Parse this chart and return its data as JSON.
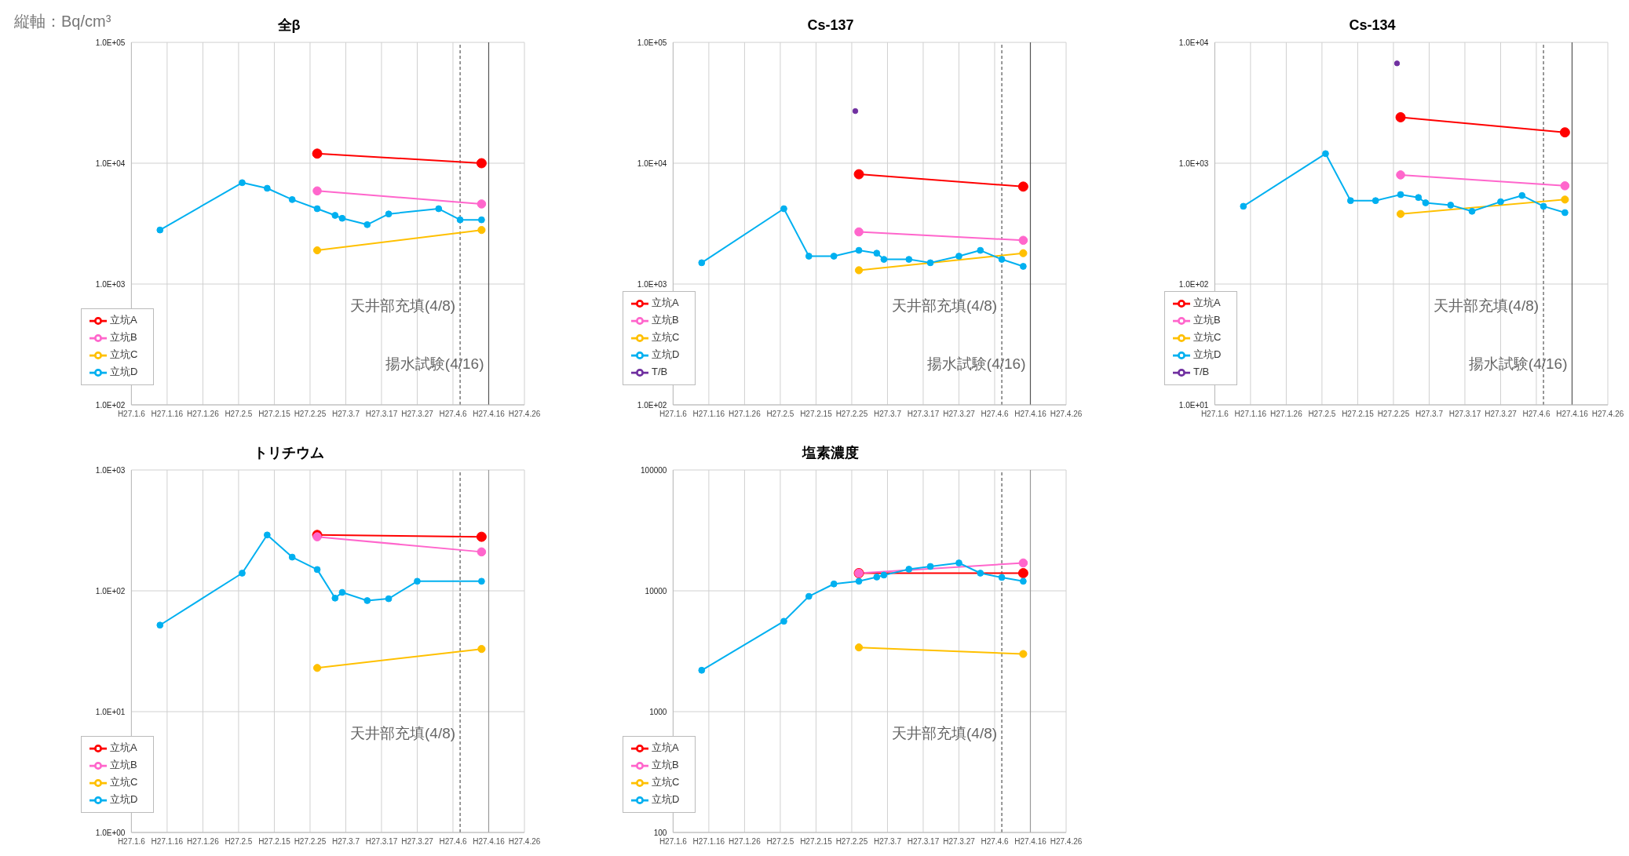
{
  "chart_data": [
    {
      "type": "line",
      "title": "全β",
      "annotations": [
        "縦軸：Bq/cm³"
      ],
      "log": "y",
      "grid": true,
      "legend": "bottom left",
      "marker": "circle",
      "xlim": [
        "--01-06",
        "--04-26"
      ],
      "xticks": [
        {
          "value": "--01-06",
          "label": "H27.1.6"
        },
        {
          "value": "--01-16",
          "label": "H27.1.16"
        },
        {
          "value": "--01-26",
          "label": "H27.1.26"
        },
        {
          "value": "--02-05",
          "label": "H27.2.5"
        },
        {
          "value": "--02-15",
          "label": "H27.2.15"
        },
        {
          "value": "--02-25",
          "label": "H27.2.25"
        },
        {
          "value": "--03-07",
          "label": "H27.3.7"
        },
        {
          "value": "--03-17",
          "label": "H27.3.17"
        },
        {
          "value": "--03-27",
          "label": "H27.3.27"
        },
        {
          "value": "--04-06",
          "label": "H27.4.6"
        },
        {
          "value": "--04-16",
          "label": "H27.4.16"
        },
        {
          "value": "--04-26",
          "label": "H27.4.26"
        }
      ],
      "ylim": [
        100,
        100000
      ],
      "yticks": [
        {
          "value": 100,
          "label": "1.0E+02"
        },
        {
          "value": 1000,
          "label": "1.0E+03"
        },
        {
          "value": 10000,
          "label": "1.0E+04"
        },
        {
          "value": 100000,
          "label": "1.0E+05"
        }
      ],
      "ref_lines": [
        {
          "axis": "x",
          "value": "--04-08",
          "label": "天井部充填(4/8)",
          "line_style": "dashed",
          "color": "#555555"
        },
        {
          "axis": "x",
          "value": "--04-16",
          "label": "揚水試験(4/16)",
          "line_style": "solid",
          "color": "#555555"
        }
      ],
      "series": [
        {
          "name": "立坑A",
          "color": "#ff0000",
          "x": [
            "--02-27",
            "--04-14"
          ],
          "values": [
            12000,
            10000
          ]
        },
        {
          "name": "立坑B",
          "color": "#ff66cc",
          "x": [
            "--02-27",
            "--04-14"
          ],
          "values": [
            5900,
            4600
          ]
        },
        {
          "name": "立坑C",
          "color": "#ffc000",
          "x": [
            "--02-27",
            "--04-14"
          ],
          "values": [
            1900,
            2800
          ]
        },
        {
          "name": "立坑D",
          "color": "#00b0f0",
          "x": [
            "--01-14",
            "--02-06",
            "--02-13",
            "--02-20",
            "--02-27",
            "--03-04",
            "--03-06",
            "--03-13",
            "--03-19",
            "--04-02",
            "--04-08",
            "--04-14"
          ],
          "values": [
            2800,
            6900,
            6200,
            5000,
            4200,
            3700,
            3500,
            3100,
            3800,
            4200,
            3400,
            3400
          ]
        }
      ]
    },
    {
      "type": "line",
      "title": "Cs-137",
      "log": "y",
      "grid": true,
      "legend": "bottom left",
      "marker": "circle",
      "xlim": [
        "--01-06",
        "--04-26"
      ],
      "xticks": [
        {
          "value": "--01-06",
          "label": "H27.1.6"
        },
        {
          "value": "--01-16",
          "label": "H27.1.16"
        },
        {
          "value": "--01-26",
          "label": "H27.1.26"
        },
        {
          "value": "--02-05",
          "label": "H27.2.5"
        },
        {
          "value": "--02-15",
          "label": "H27.2.15"
        },
        {
          "value": "--02-25",
          "label": "H27.2.25"
        },
        {
          "value": "--03-07",
          "label": "H27.3.7"
        },
        {
          "value": "--03-17",
          "label": "H27.3.17"
        },
        {
          "value": "--03-27",
          "label": "H27.3.27"
        },
        {
          "value": "--04-06",
          "label": "H27.4.6"
        },
        {
          "value": "--04-16",
          "label": "H27.4.16"
        },
        {
          "value": "--04-26",
          "label": "H27.4.26"
        }
      ],
      "ylim": [
        100,
        100000
      ],
      "yticks": [
        {
          "value": 100,
          "label": "1.0E+02"
        },
        {
          "value": 1000,
          "label": "1.0E+03"
        },
        {
          "value": 10000,
          "label": "1.0E+04"
        },
        {
          "value": 100000,
          "label": "1.0E+05"
        }
      ],
      "ref_lines": [
        {
          "axis": "x",
          "value": "--04-08",
          "label": "天井部充填(4/8)",
          "line_style": "dashed",
          "color": "#555555"
        },
        {
          "axis": "x",
          "value": "--04-16",
          "label": "揚水試験(4/16)",
          "line_style": "solid",
          "color": "#555555"
        }
      ],
      "series": [
        {
          "name": "立坑A",
          "color": "#ff0000",
          "x": [
            "--02-27",
            "--04-14"
          ],
          "values": [
            8100,
            6400
          ]
        },
        {
          "name": "立坑B",
          "color": "#ff66cc",
          "x": [
            "--02-27",
            "--04-14"
          ],
          "values": [
            2700,
            2300
          ]
        },
        {
          "name": "立坑C",
          "color": "#ffc000",
          "x": [
            "--02-27",
            "--04-14"
          ],
          "values": [
            1300,
            1800
          ]
        },
        {
          "name": "立坑D",
          "color": "#00b0f0",
          "x": [
            "--01-14",
            "--02-06",
            "--02-13",
            "--02-20",
            "--02-27",
            "--03-04",
            "--03-06",
            "--03-13",
            "--03-19",
            "--03-27",
            "--04-02",
            "--04-08",
            "--04-14"
          ],
          "values": [
            1500,
            4200,
            1700,
            1700,
            1900,
            1800,
            1600,
            1600,
            1500,
            1700,
            1900,
            1600,
            1400
          ]
        },
        {
          "name": "T/B",
          "color": "#7030a0",
          "x": [
            "--02-26"
          ],
          "values": [
            27000
          ]
        }
      ]
    },
    {
      "type": "line",
      "title": "Cs-134",
      "log": "y",
      "grid": true,
      "legend": "bottom left",
      "marker": "circle",
      "xlim": [
        "--01-06",
        "--04-26"
      ],
      "xticks": [
        {
          "value": "--01-06",
          "label": "H27.1.6"
        },
        {
          "value": "--01-16",
          "label": "H27.1.16"
        },
        {
          "value": "--01-26",
          "label": "H27.1.26"
        },
        {
          "value": "--02-05",
          "label": "H27.2.5"
        },
        {
          "value": "--02-15",
          "label": "H27.2.15"
        },
        {
          "value": "--02-25",
          "label": "H27.2.25"
        },
        {
          "value": "--03-07",
          "label": "H27.3.7"
        },
        {
          "value": "--03-17",
          "label": "H27.3.17"
        },
        {
          "value": "--03-27",
          "label": "H27.3.27"
        },
        {
          "value": "--04-06",
          "label": "H27.4.6"
        },
        {
          "value": "--04-16",
          "label": "H27.4.16"
        },
        {
          "value": "--04-26",
          "label": "H27.4.26"
        }
      ],
      "ylim": [
        10,
        10000
      ],
      "yticks": [
        {
          "value": 10,
          "label": "1.0E+01"
        },
        {
          "value": 100,
          "label": "1.0E+02"
        },
        {
          "value": 1000,
          "label": "1.0E+03"
        },
        {
          "value": 10000,
          "label": "1.0E+04"
        }
      ],
      "ref_lines": [
        {
          "axis": "x",
          "value": "--04-08",
          "label": "天井部充填(4/8)",
          "line_style": "dashed",
          "color": "#555555"
        },
        {
          "axis": "x",
          "value": "--04-16",
          "label": "揚水試験(4/16)",
          "line_style": "solid",
          "color": "#555555"
        }
      ],
      "series": [
        {
          "name": "立坑A",
          "color": "#ff0000",
          "x": [
            "--02-27",
            "--04-14"
          ],
          "values": [
            2400,
            1800
          ]
        },
        {
          "name": "立坑B",
          "color": "#ff66cc",
          "x": [
            "--02-27",
            "--04-14"
          ],
          "values": [
            800,
            650
          ]
        },
        {
          "name": "立坑C",
          "color": "#ffc000",
          "x": [
            "--02-27",
            "--04-14"
          ],
          "values": [
            380,
            500
          ]
        },
        {
          "name": "立坑D",
          "color": "#00b0f0",
          "x": [
            "--01-14",
            "--02-06",
            "--02-13",
            "--02-20",
            "--02-27",
            "--03-04",
            "--03-06",
            "--03-13",
            "--03-19",
            "--03-27",
            "--04-02",
            "--04-08",
            "--04-14"
          ],
          "values": [
            440,
            1200,
            490,
            490,
            550,
            520,
            470,
            450,
            400,
            480,
            540,
            440,
            390
          ]
        },
        {
          "name": "T/B",
          "color": "#7030a0",
          "x": [
            "--02-26"
          ],
          "values": [
            6700
          ]
        }
      ]
    },
    {
      "type": "line",
      "title": "トリチウム",
      "log": "y",
      "grid": true,
      "legend": "bottom left",
      "marker": "circle",
      "xlim": [
        "--01-06",
        "--04-26"
      ],
      "xticks": [
        {
          "value": "--01-06",
          "label": "H27.1.6"
        },
        {
          "value": "--01-16",
          "label": "H27.1.16"
        },
        {
          "value": "--01-26",
          "label": "H27.1.26"
        },
        {
          "value": "--02-05",
          "label": "H27.2.5"
        },
        {
          "value": "--02-15",
          "label": "H27.2.15"
        },
        {
          "value": "--02-25",
          "label": "H27.2.25"
        },
        {
          "value": "--03-07",
          "label": "H27.3.7"
        },
        {
          "value": "--03-17",
          "label": "H27.3.17"
        },
        {
          "value": "--03-27",
          "label": "H27.3.27"
        },
        {
          "value": "--04-06",
          "label": "H27.4.6"
        },
        {
          "value": "--04-16",
          "label": "H27.4.16"
        },
        {
          "value": "--04-26",
          "label": "H27.4.26"
        }
      ],
      "ylim": [
        1,
        1000
      ],
      "yticks": [
        {
          "value": 1,
          "label": "1.0E+00"
        },
        {
          "value": 10,
          "label": "1.0E+01"
        },
        {
          "value": 100,
          "label": "1.0E+02"
        },
        {
          "value": 1000,
          "label": "1.0E+03"
        }
      ],
      "ref_lines": [
        {
          "axis": "x",
          "value": "--04-08",
          "label": "天井部充填(4/8)",
          "line_style": "dashed",
          "color": "#555555"
        },
        {
          "axis": "x",
          "value": "--04-16",
          "line_style": "solid",
          "color": "#999999"
        }
      ],
      "series": [
        {
          "name": "立坑A",
          "color": "#ff0000",
          "x": [
            "--02-27",
            "--04-14"
          ],
          "values": [
            290,
            280
          ]
        },
        {
          "name": "立坑B",
          "color": "#ff66cc",
          "x": [
            "--02-27",
            "--04-14"
          ],
          "values": [
            280,
            210
          ]
        },
        {
          "name": "立坑C",
          "color": "#ffc000",
          "x": [
            "--02-27",
            "--04-14"
          ],
          "values": [
            23,
            33
          ]
        },
        {
          "name": "立坑D",
          "color": "#00b0f0",
          "x": [
            "--01-14",
            "--02-06",
            "--02-13",
            "--02-20",
            "--02-27",
            "--03-04",
            "--03-06",
            "--03-13",
            "--03-19",
            "--03-27",
            "--04-14"
          ],
          "values": [
            52,
            140,
            290,
            190,
            150,
            87,
            97,
            83,
            86,
            120,
            120
          ]
        }
      ]
    },
    {
      "type": "line",
      "title": "塩素濃度",
      "log": "y",
      "grid": true,
      "legend": "bottom left",
      "marker": "circle",
      "xlim": [
        "--01-06",
        "--04-26"
      ],
      "xticks": [
        {
          "value": "--01-06",
          "label": "H27.1.6"
        },
        {
          "value": "--01-16",
          "label": "H27.1.16"
        },
        {
          "value": "--01-26",
          "label": "H27.1.26"
        },
        {
          "value": "--02-05",
          "label": "H27.2.5"
        },
        {
          "value": "--02-15",
          "label": "H27.2.15"
        },
        {
          "value": "--02-25",
          "label": "H27.2.25"
        },
        {
          "value": "--03-07",
          "label": "H27.3.7"
        },
        {
          "value": "--03-17",
          "label": "H27.3.17"
        },
        {
          "value": "--03-27",
          "label": "H27.3.27"
        },
        {
          "value": "--04-06",
          "label": "H27.4.6"
        },
        {
          "value": "--04-16",
          "label": "H27.4.16"
        },
        {
          "value": "--04-26",
          "label": "H27.4.26"
        }
      ],
      "ylim": [
        100,
        100000
      ],
      "yticks": [
        100,
        1000,
        10000,
        100000
      ],
      "ref_lines": [
        {
          "axis": "x",
          "value": "--04-08",
          "label": "天井部充填(4/8)",
          "line_style": "dashed",
          "color": "#555555"
        },
        {
          "axis": "x",
          "value": "--04-16",
          "line_style": "solid",
          "color": "#999999"
        }
      ],
      "series": [
        {
          "name": "立坑A",
          "color": "#ff0000",
          "x": [
            "--02-27",
            "--04-14"
          ],
          "values": [
            14000,
            14000
          ]
        },
        {
          "name": "立坑B",
          "color": "#ff66cc",
          "x": [
            "--02-27",
            "--04-14"
          ],
          "values": [
            14000,
            17000
          ]
        },
        {
          "name": "立坑C",
          "color": "#ffc000",
          "x": [
            "--02-27",
            "--04-14"
          ],
          "values": [
            3400,
            3000
          ]
        },
        {
          "name": "立坑D",
          "color": "#00b0f0",
          "x": [
            "--01-14",
            "--02-06",
            "--02-13",
            "--02-20",
            "--02-27",
            "--03-04",
            "--03-06",
            "--03-13",
            "--03-19",
            "--03-27",
            "--04-02",
            "--04-08",
            "--04-14"
          ],
          "values": [
            2200,
            5600,
            9000,
            11400,
            12000,
            13000,
            13500,
            15100,
            15900,
            17000,
            14000,
            12900,
            12000
          ]
        }
      ]
    }
  ]
}
